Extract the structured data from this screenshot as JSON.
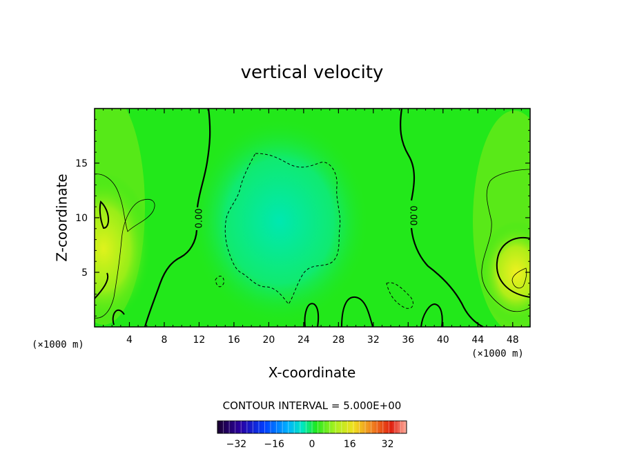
{
  "chart_data": {
    "type": "heatmap",
    "title": "vertical velocity",
    "xlabel": "X-coordinate",
    "ylabel": "Z-coordinate",
    "x_unit": "(×1000 m)",
    "y_unit": "(×1000 m)",
    "xlim": [
      0,
      50
    ],
    "ylim": [
      0,
      20
    ],
    "x_ticks": [
      4,
      8,
      12,
      16,
      20,
      24,
      28,
      32,
      36,
      40,
      44,
      48
    ],
    "y_ticks": [
      5,
      10,
      15
    ],
    "contour_interval_text": "CONTOUR INTERVAL = 5.000E+00",
    "contour_labels": [
      {
        "text": "0.00",
        "x": 11.8,
        "z": 10.0
      },
      {
        "text": "0.00",
        "x": 36.3,
        "z": 10.0
      }
    ],
    "colorbar": {
      "range": [
        -40,
        40
      ],
      "ticks": [
        -32,
        -16,
        0,
        16,
        32
      ],
      "tick_labels": [
        "−32",
        "−16",
        "0",
        "16",
        "32"
      ]
    },
    "field_description": "Mostly near-zero (green) field; negative (cyan) region centered x≈16–31, z≈3–15; positive (yellow) maxima near left edge x≈0–5, z≈4–12 and right edge x≈46–50, z≈3–8.",
    "colors": {
      "background_field": "#22e81a",
      "negative_core": "#00e8a8",
      "positive_core": "#e6f020",
      "contour": "#000000"
    }
  }
}
